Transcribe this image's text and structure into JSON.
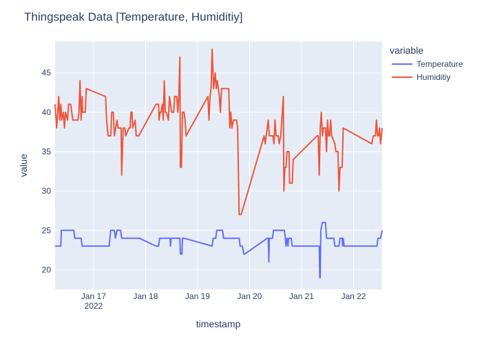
{
  "chart_data": {
    "type": "line",
    "title": "Thingspeak Data [Temperature, Humiditiy]",
    "xlabel": "timestamp",
    "ylabel": "value",
    "x_tick_labels": [
      "Jan 17",
      "Jan 18",
      "Jan 19",
      "Jan 20",
      "Jan 21",
      "Jan 22"
    ],
    "x_tick_values": [
      17,
      18,
      19,
      20,
      21,
      22
    ],
    "x_year_label": "2022",
    "xlim": [
      16.26,
      22.55
    ],
    "y_ticks": [
      20,
      25,
      30,
      35,
      40,
      45
    ],
    "ylim": [
      17.5,
      49
    ],
    "grid": true,
    "plot_background": "#e5ecf6",
    "legend": {
      "title": "variable",
      "position": "right"
    },
    "series": [
      {
        "name": "Temperature",
        "color": "#636efa",
        "points": [
          [
            16.26,
            23
          ],
          [
            16.37,
            23
          ],
          [
            16.38,
            25
          ],
          [
            16.62,
            25
          ],
          [
            16.64,
            24
          ],
          [
            16.76,
            24
          ],
          [
            16.78,
            23
          ],
          [
            17.3,
            23
          ],
          [
            17.33,
            25
          ],
          [
            17.4,
            25
          ],
          [
            17.42,
            24
          ],
          [
            17.45,
            25
          ],
          [
            17.52,
            25
          ],
          [
            17.54,
            24
          ],
          [
            17.88,
            24
          ],
          [
            18.2,
            23
          ],
          [
            18.25,
            23
          ],
          [
            18.27,
            24
          ],
          [
            18.47,
            24
          ],
          [
            18.48,
            23
          ],
          [
            18.49,
            24
          ],
          [
            18.66,
            24
          ],
          [
            18.67,
            22
          ],
          [
            18.7,
            22
          ],
          [
            18.71,
            24
          ],
          [
            18.74,
            24
          ],
          [
            19.28,
            23
          ],
          [
            19.3,
            24
          ],
          [
            19.35,
            24
          ],
          [
            19.37,
            25
          ],
          [
            19.48,
            25
          ],
          [
            19.5,
            24
          ],
          [
            19.8,
            24
          ],
          [
            19.82,
            23
          ],
          [
            19.86,
            23
          ],
          [
            19.89,
            22
          ],
          [
            19.91,
            22
          ],
          [
            20.34,
            24
          ],
          [
            20.36,
            24
          ],
          [
            20.37,
            21
          ],
          [
            20.38,
            24
          ],
          [
            20.44,
            24
          ],
          [
            20.46,
            25
          ],
          [
            20.67,
            25
          ],
          [
            20.69,
            24
          ],
          [
            20.7,
            23
          ],
          [
            20.72,
            24
          ],
          [
            20.74,
            23
          ],
          [
            20.75,
            24
          ],
          [
            20.8,
            24
          ],
          [
            20.82,
            23
          ],
          [
            21.34,
            23
          ],
          [
            21.35,
            19
          ],
          [
            21.36,
            19
          ],
          [
            21.37,
            25
          ],
          [
            21.4,
            26
          ],
          [
            21.46,
            26
          ],
          [
            21.48,
            24
          ],
          [
            21.62,
            24
          ],
          [
            21.64,
            23
          ],
          [
            21.72,
            23
          ],
          [
            21.74,
            24
          ],
          [
            21.78,
            24
          ],
          [
            21.79,
            23
          ],
          [
            21.8,
            24
          ],
          [
            21.82,
            23
          ],
          [
            22.45,
            23
          ],
          [
            22.47,
            24
          ],
          [
            22.52,
            24
          ],
          [
            22.55,
            25
          ]
        ]
      },
      {
        "name": "Humiditiy",
        "color": "#ef553b",
        "points": [
          [
            16.26,
            41
          ],
          [
            16.29,
            38
          ],
          [
            16.31,
            40
          ],
          [
            16.33,
            42
          ],
          [
            16.35,
            39
          ],
          [
            16.37,
            41
          ],
          [
            16.39,
            39
          ],
          [
            16.42,
            40
          ],
          [
            16.44,
            38
          ],
          [
            16.46,
            40
          ],
          [
            16.5,
            39
          ],
          [
            16.52,
            41
          ],
          [
            16.56,
            41
          ],
          [
            16.6,
            39
          ],
          [
            16.7,
            39
          ],
          [
            16.72,
            40
          ],
          [
            16.74,
            44
          ],
          [
            16.76,
            39
          ],
          [
            16.78,
            42
          ],
          [
            16.79,
            40
          ],
          [
            16.84,
            40
          ],
          [
            16.86,
            43
          ],
          [
            17.23,
            42
          ],
          [
            17.25,
            39
          ],
          [
            17.28,
            37
          ],
          [
            17.33,
            37
          ],
          [
            17.35,
            40
          ],
          [
            17.38,
            40
          ],
          [
            17.4,
            37
          ],
          [
            17.45,
            39
          ],
          [
            17.47,
            38
          ],
          [
            17.53,
            38
          ],
          [
            17.54,
            32
          ],
          [
            17.57,
            38
          ],
          [
            17.6,
            38
          ],
          [
            17.62,
            37
          ],
          [
            17.68,
            38
          ],
          [
            17.7,
            38
          ],
          [
            17.72,
            40
          ],
          [
            17.74,
            40
          ],
          [
            17.75,
            38
          ],
          [
            17.8,
            39
          ],
          [
            17.82,
            37
          ],
          [
            17.87,
            37
          ],
          [
            18.2,
            41
          ],
          [
            18.25,
            41
          ],
          [
            18.26,
            39
          ],
          [
            18.28,
            40
          ],
          [
            18.3,
            40
          ],
          [
            18.32,
            41
          ],
          [
            18.34,
            39
          ],
          [
            18.36,
            44
          ],
          [
            18.38,
            40
          ],
          [
            18.4,
            40
          ],
          [
            18.44,
            39
          ],
          [
            18.46,
            42
          ],
          [
            18.5,
            40
          ],
          [
            18.54,
            40
          ],
          [
            18.56,
            42
          ],
          [
            18.6,
            42
          ],
          [
            18.62,
            40
          ],
          [
            18.64,
            42
          ],
          [
            18.66,
            47
          ],
          [
            18.67,
            33
          ],
          [
            18.69,
            33
          ],
          [
            18.71,
            40
          ],
          [
            18.74,
            40
          ],
          [
            18.76,
            39
          ],
          [
            18.78,
            37
          ],
          [
            19.2,
            42
          ],
          [
            19.22,
            39
          ],
          [
            19.24,
            42
          ],
          [
            19.26,
            43
          ],
          [
            19.28,
            48
          ],
          [
            19.31,
            43
          ],
          [
            19.34,
            45
          ],
          [
            19.36,
            43
          ],
          [
            19.38,
            44
          ],
          [
            19.42,
            42
          ],
          [
            19.44,
            40
          ],
          [
            19.46,
            43
          ],
          [
            19.6,
            43
          ],
          [
            19.62,
            38
          ],
          [
            19.64,
            40
          ],
          [
            19.66,
            38
          ],
          [
            19.69,
            39
          ],
          [
            19.75,
            39
          ],
          [
            19.77,
            38
          ],
          [
            19.8,
            27
          ],
          [
            19.84,
            27
          ],
          [
            20.28,
            37
          ],
          [
            20.3,
            36
          ],
          [
            20.32,
            37
          ],
          [
            20.34,
            38
          ],
          [
            20.36,
            39
          ],
          [
            20.38,
            37
          ],
          [
            20.45,
            37
          ],
          [
            20.47,
            36
          ],
          [
            20.49,
            39
          ],
          [
            20.51,
            37
          ],
          [
            20.55,
            37
          ],
          [
            20.57,
            36
          ],
          [
            20.6,
            37
          ],
          [
            20.63,
            40
          ],
          [
            20.65,
            42
          ],
          [
            20.66,
            30
          ],
          [
            20.68,
            33
          ],
          [
            20.7,
            33
          ],
          [
            20.72,
            35
          ],
          [
            20.76,
            35
          ],
          [
            20.77,
            31
          ],
          [
            20.82,
            31
          ],
          [
            20.84,
            34
          ],
          [
            21.3,
            37
          ],
          [
            21.32,
            37
          ],
          [
            21.34,
            32
          ],
          [
            21.36,
            38
          ],
          [
            21.38,
            40
          ],
          [
            21.4,
            37
          ],
          [
            21.42,
            38
          ],
          [
            21.46,
            38
          ],
          [
            21.48,
            35
          ],
          [
            21.5,
            39
          ],
          [
            21.52,
            37
          ],
          [
            21.54,
            37
          ],
          [
            21.56,
            39
          ],
          [
            21.58,
            37
          ],
          [
            21.64,
            36
          ],
          [
            21.66,
            35
          ],
          [
            21.7,
            35
          ],
          [
            21.72,
            30
          ],
          [
            21.74,
            33
          ],
          [
            21.78,
            33
          ],
          [
            21.8,
            38
          ],
          [
            22.35,
            36
          ],
          [
            22.38,
            37
          ],
          [
            22.42,
            37
          ],
          [
            22.44,
            39
          ],
          [
            22.46,
            37
          ],
          [
            22.48,
            37
          ],
          [
            22.5,
            38
          ],
          [
            22.52,
            36
          ],
          [
            22.55,
            38
          ]
        ]
      }
    ]
  }
}
